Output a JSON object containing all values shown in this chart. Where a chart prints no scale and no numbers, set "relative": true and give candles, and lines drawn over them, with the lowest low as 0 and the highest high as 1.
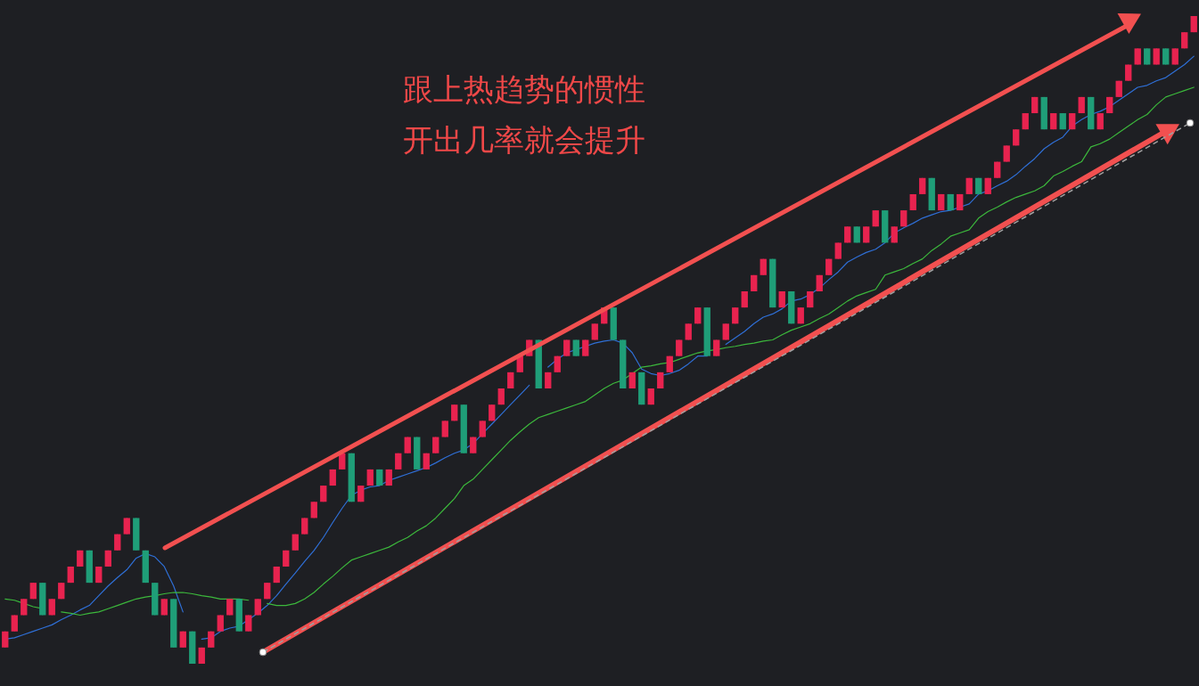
{
  "chart_data": {
    "type": "candlestick",
    "relative": true,
    "categories": [
      null,
      null,
      null,
      null,
      null,
      null,
      null,
      null,
      null,
      null,
      null,
      null,
      null,
      null,
      null,
      null,
      null,
      null,
      null,
      null,
      null,
      null,
      null,
      null,
      null,
      null,
      null,
      null,
      null,
      null,
      null,
      null,
      null,
      null,
      null,
      null,
      null,
      null,
      null,
      null,
      null,
      null,
      null,
      null,
      null,
      null,
      null,
      null,
      null,
      null,
      null,
      null,
      null,
      null,
      null,
      null,
      null,
      null,
      null,
      null,
      null,
      null,
      null,
      null,
      null,
      null,
      null,
      null,
      null,
      null,
      null,
      null,
      null,
      null,
      null,
      null,
      null,
      null,
      null,
      null,
      null,
      null,
      null,
      null,
      null,
      null,
      null,
      null,
      null,
      null,
      null,
      null,
      null,
      null,
      null,
      null,
      null,
      null,
      null,
      null,
      null,
      null,
      null,
      null,
      null,
      null,
      null,
      null,
      null,
      null,
      null,
      null,
      null,
      null,
      null,
      null,
      null,
      null,
      null,
      null,
      null,
      null,
      null,
      null,
      null,
      null,
      null,
      null
    ],
    "ohlc": [
      [
        0.025,
        0.05,
        0.025,
        0.05
      ],
      [
        0.05,
        0.075,
        0.05,
        0.075
      ],
      [
        0.075,
        0.1,
        0.075,
        0.1
      ],
      [
        0.1,
        0.125,
        0.1,
        0.125
      ],
      [
        0.125,
        0.125,
        0.075,
        0.075
      ],
      [
        0.075,
        0.1,
        0.075,
        0.1
      ],
      [
        0.1,
        0.125,
        0.1,
        0.125
      ],
      [
        0.125,
        0.15,
        0.125,
        0.15
      ],
      [
        0.15,
        0.175,
        0.15,
        0.175
      ],
      [
        0.175,
        0.175,
        0.125,
        0.125
      ],
      [
        0.125,
        0.15,
        0.125,
        0.15
      ],
      [
        0.15,
        0.175,
        0.15,
        0.175
      ],
      [
        0.175,
        0.2,
        0.175,
        0.2
      ],
      [
        0.2,
        0.225,
        0.2,
        0.225
      ],
      [
        0.225,
        0.225,
        0.175,
        0.175
      ],
      [
        0.175,
        0.175,
        0.125,
        0.125
      ],
      [
        0.125,
        0.125,
        0.075,
        0.075
      ],
      [
        0.075,
        0.1,
        0.075,
        0.1
      ],
      [
        0.1,
        0.1,
        0.025,
        0.025
      ],
      [
        0.025,
        0.05,
        0.025,
        0.05
      ],
      [
        0.05,
        0.05,
        0,
        0
      ],
      [
        0,
        0.025,
        0,
        0.025
      ],
      [
        0.025,
        0.05,
        0.025,
        0.05
      ],
      [
        0.05,
        0.075,
        0.05,
        0.075
      ],
      [
        0.075,
        0.1,
        0.075,
        0.1
      ],
      [
        0.1,
        0.1,
        0.05,
        0.05
      ],
      [
        0.05,
        0.075,
        0.05,
        0.075
      ],
      [
        0.075,
        0.1,
        0.075,
        0.1
      ],
      [
        0.1,
        0.125,
        0.1,
        0.125
      ],
      [
        0.125,
        0.15,
        0.125,
        0.15
      ],
      [
        0.15,
        0.175,
        0.15,
        0.175
      ],
      [
        0.175,
        0.2,
        0.175,
        0.2
      ],
      [
        0.2,
        0.225,
        0.2,
        0.225
      ],
      [
        0.225,
        0.25,
        0.225,
        0.25
      ],
      [
        0.25,
        0.275,
        0.25,
        0.275
      ],
      [
        0.275,
        0.3,
        0.275,
        0.3
      ],
      [
        0.3,
        0.325,
        0.3,
        0.325
      ],
      [
        0.325,
        0.325,
        0.25,
        0.25
      ],
      [
        0.25,
        0.275,
        0.25,
        0.275
      ],
      [
        0.275,
        0.3,
        0.275,
        0.3
      ],
      [
        0.3,
        0.3,
        0.275,
        0.275
      ],
      [
        0.275,
        0.3,
        0.275,
        0.3
      ],
      [
        0.3,
        0.325,
        0.3,
        0.325
      ],
      [
        0.325,
        0.35,
        0.325,
        0.35
      ],
      [
        0.35,
        0.35,
        0.3,
        0.3
      ],
      [
        0.3,
        0.325,
        0.3,
        0.325
      ],
      [
        0.325,
        0.35,
        0.325,
        0.35
      ],
      [
        0.35,
        0.375,
        0.35,
        0.375
      ],
      [
        0.375,
        0.4,
        0.375,
        0.4
      ],
      [
        0.4,
        0.4,
        0.325,
        0.325
      ],
      [
        0.325,
        0.35,
        0.325,
        0.35
      ],
      [
        0.35,
        0.375,
        0.35,
        0.375
      ],
      [
        0.375,
        0.4,
        0.375,
        0.4
      ],
      [
        0.4,
        0.425,
        0.4,
        0.425
      ],
      [
        0.425,
        0.45,
        0.425,
        0.45
      ],
      [
        0.45,
        0.475,
        0.45,
        0.475
      ],
      [
        0.475,
        0.5,
        0.475,
        0.5
      ],
      [
        0.5,
        0.5,
        0.425,
        0.425
      ],
      [
        0.425,
        0.45,
        0.425,
        0.45
      ],
      [
        0.45,
        0.475,
        0.45,
        0.475
      ],
      [
        0.475,
        0.5,
        0.475,
        0.5
      ],
      [
        0.5,
        0.5,
        0.475,
        0.475
      ],
      [
        0.475,
        0.5,
        0.475,
        0.5
      ],
      [
        0.5,
        0.525,
        0.5,
        0.525
      ],
      [
        0.525,
        0.55,
        0.525,
        0.55
      ],
      [
        0.55,
        0.55,
        0.5,
        0.5
      ],
      [
        0.5,
        0.5,
        0.425,
        0.425
      ],
      [
        0.425,
        0.45,
        0.425,
        0.45
      ],
      [
        0.45,
        0.45,
        0.4,
        0.4
      ],
      [
        0.4,
        0.425,
        0.4,
        0.425
      ],
      [
        0.425,
        0.45,
        0.425,
        0.45
      ],
      [
        0.45,
        0.475,
        0.45,
        0.475
      ],
      [
        0.475,
        0.5,
        0.475,
        0.5
      ],
      [
        0.5,
        0.525,
        0.5,
        0.525
      ],
      [
        0.525,
        0.55,
        0.525,
        0.55
      ],
      [
        0.55,
        0.55,
        0.475,
        0.475
      ],
      [
        0.475,
        0.5,
        0.475,
        0.5
      ],
      [
        0.5,
        0.525,
        0.5,
        0.525
      ],
      [
        0.525,
        0.55,
        0.525,
        0.55
      ],
      [
        0.55,
        0.575,
        0.55,
        0.575
      ],
      [
        0.575,
        0.6,
        0.575,
        0.6
      ],
      [
        0.6,
        0.625,
        0.6,
        0.625
      ],
      [
        0.625,
        0.625,
        0.55,
        0.55
      ],
      [
        0.55,
        0.575,
        0.55,
        0.575
      ],
      [
        0.575,
        0.575,
        0.525,
        0.525
      ],
      [
        0.525,
        0.55,
        0.525,
        0.55
      ],
      [
        0.55,
        0.575,
        0.55,
        0.575
      ],
      [
        0.575,
        0.6,
        0.575,
        0.6
      ],
      [
        0.6,
        0.625,
        0.6,
        0.625
      ],
      [
        0.625,
        0.65,
        0.625,
        0.65
      ],
      [
        0.65,
        0.675,
        0.65,
        0.675
      ],
      [
        0.675,
        0.675,
        0.65,
        0.65
      ],
      [
        0.65,
        0.675,
        0.65,
        0.675
      ],
      [
        0.675,
        0.7,
        0.675,
        0.7
      ],
      [
        0.7,
        0.7,
        0.65,
        0.65
      ],
      [
        0.65,
        0.675,
        0.65,
        0.675
      ],
      [
        0.675,
        0.7,
        0.675,
        0.7
      ],
      [
        0.7,
        0.725,
        0.7,
        0.725
      ],
      [
        0.725,
        0.75,
        0.725,
        0.75
      ],
      [
        0.75,
        0.75,
        0.7,
        0.7
      ],
      [
        0.7,
        0.725,
        0.7,
        0.725
      ],
      [
        0.725,
        0.725,
        0.7,
        0.7
      ],
      [
        0.7,
        0.725,
        0.7,
        0.725
      ],
      [
        0.725,
        0.75,
        0.725,
        0.75
      ],
      [
        0.75,
        0.75,
        0.725,
        0.725
      ],
      [
        0.725,
        0.75,
        0.725,
        0.75
      ],
      [
        0.75,
        0.775,
        0.75,
        0.775
      ],
      [
        0.775,
        0.8,
        0.775,
        0.8
      ],
      [
        0.8,
        0.825,
        0.8,
        0.825
      ],
      [
        0.825,
        0.85,
        0.825,
        0.85
      ],
      [
        0.85,
        0.875,
        0.85,
        0.875
      ],
      [
        0.875,
        0.875,
        0.825,
        0.825
      ],
      [
        0.825,
        0.85,
        0.825,
        0.85
      ],
      [
        0.85,
        0.85,
        0.825,
        0.825
      ],
      [
        0.825,
        0.85,
        0.825,
        0.85
      ],
      [
        0.85,
        0.875,
        0.85,
        0.875
      ],
      [
        0.875,
        0.875,
        0.825,
        0.825
      ],
      [
        0.825,
        0.85,
        0.825,
        0.85
      ],
      [
        0.85,
        0.875,
        0.85,
        0.875
      ],
      [
        0.875,
        0.9,
        0.875,
        0.9
      ],
      [
        0.9,
        0.925,
        0.9,
        0.925
      ],
      [
        0.925,
        0.95,
        0.925,
        0.95
      ],
      [
        0.95,
        0.95,
        0.925,
        0.925
      ],
      [
        0.925,
        0.95,
        0.925,
        0.95
      ],
      [
        0.95,
        0.95,
        0.925,
        0.925
      ],
      [
        0.925,
        0.95,
        0.925,
        0.95
      ],
      [
        0.95,
        0.975,
        0.95,
        0.975
      ],
      [
        0.975,
        1,
        0.975,
        1
      ]
    ],
    "colors": [
      "#e8234f",
      "#e8234f",
      "#e8234f",
      "#e8234f",
      "#1f9e78",
      "#e8234f",
      "#e8234f",
      "#e8234f",
      "#e8234f",
      "#1f9e78",
      "#e8234f",
      "#e8234f",
      "#e8234f",
      "#e8234f",
      "#1f9e78",
      "#1f9e78",
      "#1f9e78",
      "#e8234f",
      "#1f9e78",
      "#e8234f",
      "#1f9e78",
      "#e8234f",
      "#e8234f",
      "#e8234f",
      "#e8234f",
      "#1f9e78",
      "#e8234f",
      "#e8234f",
      "#e8234f",
      "#e8234f",
      "#e8234f",
      "#e8234f",
      "#e8234f",
      "#e8234f",
      "#e8234f",
      "#e8234f",
      "#e8234f",
      "#1f9e78",
      "#e8234f",
      "#e8234f",
      "#1f9e78",
      "#e8234f",
      "#e8234f",
      "#e8234f",
      "#1f9e78",
      "#e8234f",
      "#e8234f",
      "#e8234f",
      "#e8234f",
      "#1f9e78",
      "#e8234f",
      "#e8234f",
      "#e8234f",
      "#e8234f",
      "#e8234f",
      "#e8234f",
      "#e8234f",
      "#1f9e78",
      "#e8234f",
      "#e8234f",
      "#e8234f",
      "#1f9e78",
      "#e8234f",
      "#e8234f",
      "#e8234f",
      "#1f9e78",
      "#1f9e78",
      "#e8234f",
      "#1f9e78",
      "#e8234f",
      "#e8234f",
      "#e8234f",
      "#e8234f",
      "#e8234f",
      "#e8234f",
      "#1f9e78",
      "#e8234f",
      "#e8234f",
      "#e8234f",
      "#e8234f",
      "#e8234f",
      "#e8234f",
      "#1f9e78",
      "#e8234f",
      "#1f9e78",
      "#e8234f",
      "#e8234f",
      "#e8234f",
      "#e8234f",
      "#e8234f",
      "#e8234f",
      "#1f9e78",
      "#e8234f",
      "#e8234f",
      "#1f9e78",
      "#e8234f",
      "#e8234f",
      "#e8234f",
      "#e8234f",
      "#1f9e78",
      "#e8234f",
      "#1f9e78",
      "#e8234f",
      "#e8234f",
      "#1f9e78",
      "#e8234f",
      "#e8234f",
      "#e8234f",
      "#e8234f",
      "#e8234f",
      "#e8234f",
      "#1f9e78",
      "#e8234f",
      "#1f9e78",
      "#e8234f",
      "#e8234f",
      "#1f9e78",
      "#e8234f",
      "#e8234f",
      "#e8234f",
      "#e8234f",
      "#e8234f",
      "#1f9e78",
      "#e8234f",
      "#1f9e78",
      "#e8234f",
      "#e8234f",
      "#e8234f"
    ],
    "series": [
      {
        "type": "line",
        "color": "#2f6fd6",
        "values": [
          0.038,
          0.04,
          0.045,
          0.05,
          0.055,
          0.06,
          0.068,
          0.075,
          0.083,
          0.09,
          0.105,
          0.12,
          0.133,
          0.145,
          0.163,
          0.17,
          0.165,
          0.15,
          0.12,
          0.08,
          null,
          0.038,
          0.04,
          0.05,
          0.055,
          0.058,
          0.068,
          0.078,
          0.09,
          0.105,
          0.123,
          0.14,
          0.158,
          0.175,
          0.195,
          0.218,
          0.24,
          0.26,
          0.268,
          0.273,
          0.275,
          0.283,
          0.288,
          0.293,
          0.298,
          0.303,
          0.31,
          0.318,
          0.325,
          0.33,
          0.34,
          0.355,
          0.37,
          0.385,
          0.4,
          0.415,
          0.43,
          null,
          0.458,
          0.47,
          0.48,
          0.485,
          0.49,
          0.495,
          0.498,
          0.5,
          0.495,
          0.48,
          0.455,
          0.448,
          0.445,
          0.448,
          0.453,
          0.463,
          0.475,
          0.475,
          null,
          0.493,
          0.503,
          0.513,
          0.525,
          0.535,
          0.54,
          0.548,
          0.56,
          0.563,
          0.57,
          0.58,
          0.593,
          0.605,
          0.62,
          0.628,
          0.635,
          0.64,
          0.65,
          0.665,
          0.673,
          0.68,
          0.688,
          0.693,
          0.698,
          0.7,
          0.705,
          0.71,
          0.725,
          0.73,
          0.738,
          0.745,
          0.755,
          0.768,
          0.78,
          0.795,
          0.805,
          0.813,
          0.83,
          0.84,
          0.848,
          0.853,
          0.86,
          0.87,
          0.88,
          0.89,
          0.893,
          0.9,
          0.905,
          0.915,
          0.925,
          0.938
        ]
      },
      {
        "type": "line",
        "color": "#3cb83c",
        "values": [
          0.1,
          0.098,
          0.093,
          0.088,
          0.085,
          null,
          0.08,
          0.078,
          0.075,
          0.078,
          0.08,
          0.085,
          0.09,
          0.095,
          0.1,
          0.103,
          0.105,
          0.108,
          0.11,
          0.11,
          0.108,
          0.105,
          0.103,
          0.1,
          0.1,
          0.1,
          0.098,
          null,
          0.093,
          0.09,
          0.09,
          0.093,
          0.1,
          0.11,
          0.123,
          0.135,
          0.148,
          0.16,
          0.165,
          0.17,
          0.175,
          0.18,
          0.188,
          0.195,
          0.205,
          0.213,
          0.225,
          0.24,
          0.255,
          0.275,
          0.285,
          0.3,
          0.315,
          0.33,
          0.345,
          0.358,
          0.37,
          0.38,
          0.385,
          0.39,
          0.395,
          0.4,
          0.405,
          0.415,
          0.425,
          0.433,
          0.438,
          0.448,
          0.458,
          0.46,
          0.463,
          0.465,
          0.47,
          0.475,
          0.48,
          0.483,
          0.485,
          0.488,
          0.49,
          0.493,
          0.495,
          0.498,
          0.5,
          0.508,
          0.515,
          0.52,
          0.525,
          0.533,
          0.54,
          0.55,
          0.56,
          0.568,
          0.573,
          0.578,
          0.6,
          0.605,
          0.61,
          0.618,
          0.625,
          0.638,
          0.648,
          0.66,
          0.665,
          0.67,
          0.688,
          0.698,
          0.705,
          0.713,
          0.72,
          0.725,
          0.73,
          0.738,
          0.753,
          0.76,
          0.768,
          0.775,
          0.798,
          0.803,
          0.81,
          0.82,
          0.83,
          0.84,
          0.848,
          0.863,
          0.875,
          0.88,
          0.885,
          0.89
        ]
      }
    ],
    "annotations": [
      "跟上热趋势的惯性",
      "开出几率就会提升"
    ]
  }
}
